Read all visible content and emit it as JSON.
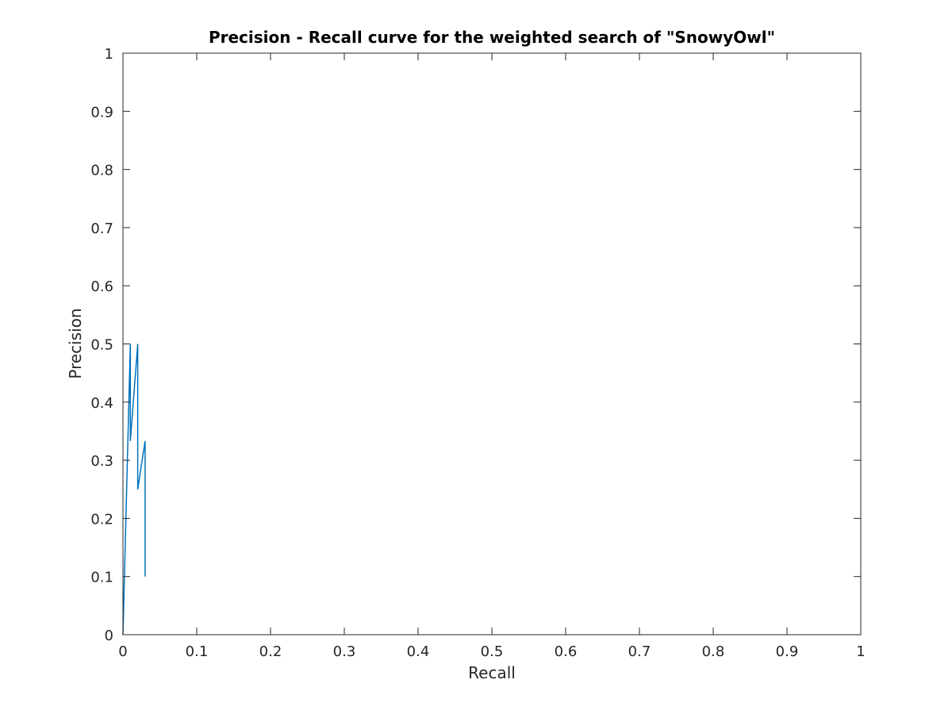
{
  "chart_data": {
    "type": "line",
    "title": "Precision - Recall curve for the weighted search of \"SnowyOwl\"",
    "xlabel": "Recall",
    "ylabel": "Precision",
    "xlim": [
      0,
      1
    ],
    "ylim": [
      0,
      1
    ],
    "xticks": [
      "0",
      "0.1",
      "0.2",
      "0.3",
      "0.4",
      "0.5",
      "0.6",
      "0.7",
      "0.8",
      "0.9",
      "1"
    ],
    "yticks": [
      "0",
      "0.1",
      "0.2",
      "0.3",
      "0.4",
      "0.5",
      "0.6",
      "0.7",
      "0.8",
      "0.9",
      "1"
    ],
    "grid": false,
    "series": [
      {
        "color": "#0072bd",
        "x": [
          0,
          0.01,
          0.01,
          0.02,
          0.02,
          0.03,
          0.03
        ],
        "y": [
          0,
          0.5,
          0.333,
          0.5,
          0.25,
          0.333,
          0.1
        ]
      }
    ]
  }
}
